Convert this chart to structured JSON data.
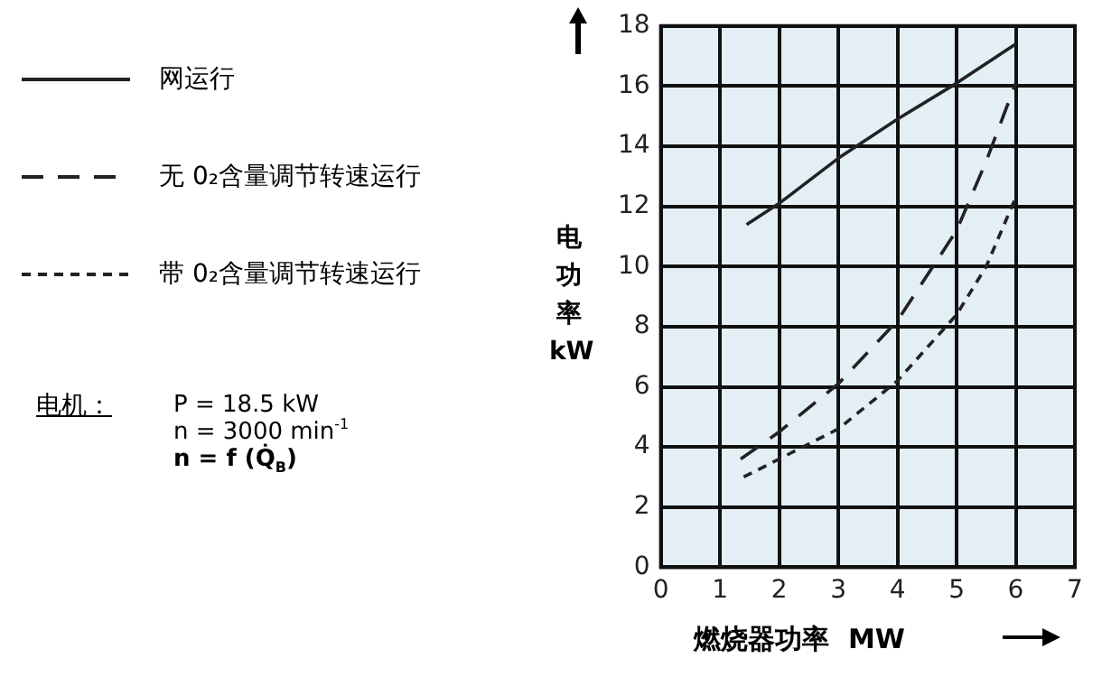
{
  "chart_data": {
    "type": "line",
    "xlabel": "燃烧器功率  MW",
    "ylabel": "电功率kW",
    "xlim": [
      0,
      7
    ],
    "xticks": [
      0,
      1,
      2,
      3,
      4,
      5,
      6,
      7
    ],
    "ylim": [
      0,
      18
    ],
    "yticks": [
      0,
      2,
      4,
      6,
      8,
      10,
      12,
      14,
      16,
      18
    ],
    "grid": true,
    "legend": "left",
    "marker": "none",
    "series": [
      {
        "name": "网运行",
        "color": "#222222",
        "line_style": "solid",
        "x": [
          1.45,
          2,
          3,
          4,
          5,
          6
        ],
        "values": [
          11.4,
          12.1,
          13.6,
          14.9,
          16.1,
          17.4
        ]
      },
      {
        "name": "无 0₂含量调节转速运行",
        "color": "#222222",
        "line_style": "dashed",
        "x": [
          1.35,
          2,
          3,
          4,
          5,
          5.5,
          6
        ],
        "values": [
          3.6,
          4.5,
          6.1,
          8.2,
          11.2,
          13.5,
          16.1
        ]
      },
      {
        "name": "带 0₂含量调节转速运行",
        "color": "#222222",
        "line_style": "dotted",
        "x": [
          1.4,
          2,
          3,
          4,
          5,
          5.5,
          6
        ],
        "values": [
          3.0,
          3.6,
          4.6,
          6.2,
          8.4,
          10,
          12.3
        ]
      }
    ],
    "annotations": [
      "电机：",
      "P = 18.5 kW",
      "n = 3000 min$^{-1}$",
      "n = f (Q̇$_{B}$)"
    ]
  }
}
